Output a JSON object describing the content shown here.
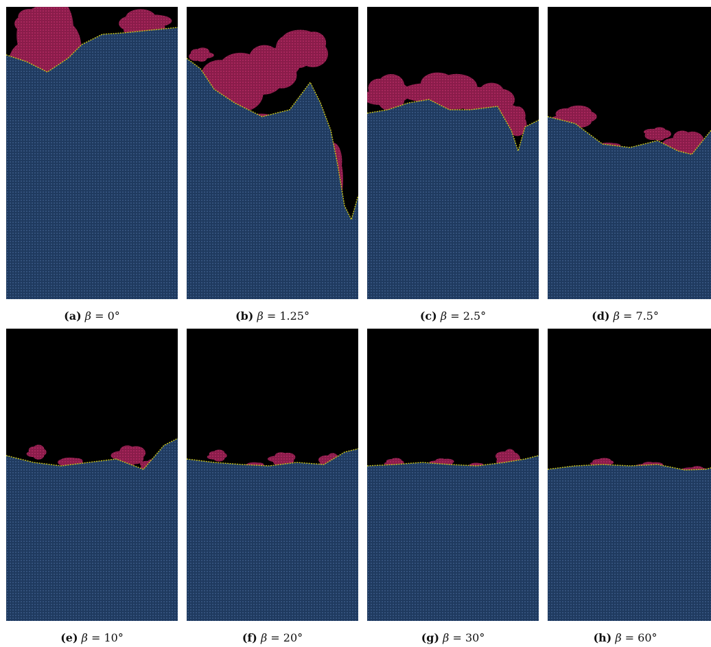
{
  "panels": [
    {
      "label": "(a)",
      "symbol": "β",
      "eq": "=",
      "value": "0°"
    },
    {
      "label": "(b)",
      "symbol": "β",
      "eq": "=",
      "value": "1.25°"
    },
    {
      "label": "(c)",
      "symbol": "β",
      "eq": "=",
      "value": "2.5°"
    },
    {
      "label": "(d)",
      "symbol": "β",
      "eq": "=",
      "value": "7.5°"
    },
    {
      "label": "(e)",
      "symbol": "β",
      "eq": "=",
      "value": "10°"
    },
    {
      "label": "(f)",
      "symbol": "β",
      "eq": "=",
      "value": "20°"
    },
    {
      "label": "(g)",
      "symbol": "β",
      "eq": "=",
      "value": "30°"
    },
    {
      "label": "(h)",
      "symbol": "β",
      "eq": "=",
      "value": "60°"
    }
  ],
  "colors": {
    "background": "#000000",
    "solid": "#1f3a5f",
    "solid_mesh": "#3a5a86",
    "invaded": "#8a1c4a",
    "invaded_dots": "#b02a62",
    "front": "#c8c31a"
  }
}
